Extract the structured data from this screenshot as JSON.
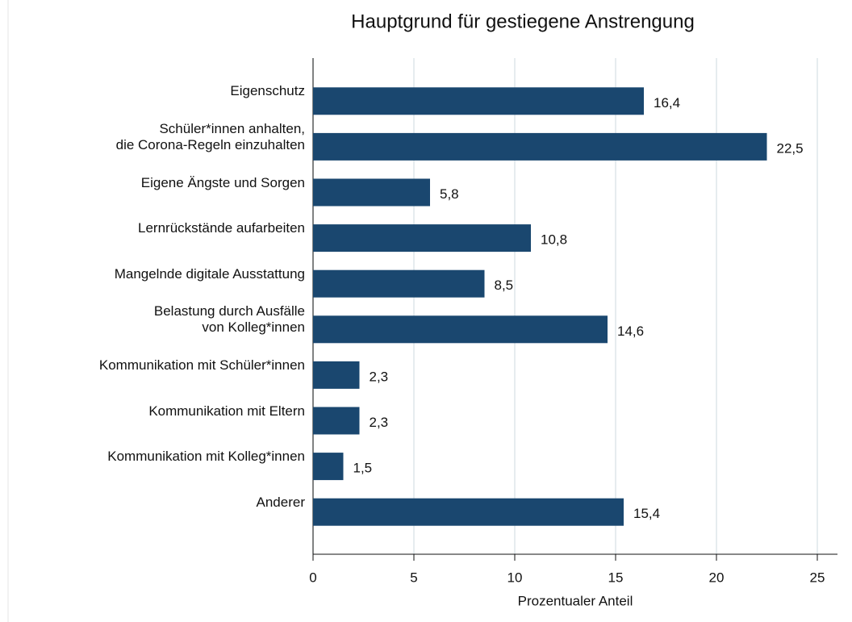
{
  "chart_data": {
    "type": "bar",
    "orientation": "horizontal",
    "title": "Hauptgrund für gestiegene Anstrengung",
    "x_label": "Prozentualer Anteil",
    "categories": [
      "Eigenschutz",
      "Schüler*innen anhalten,\ndie Corona-Regeln einzuhalten",
      "Eigene Ängste und Sorgen",
      "Lernrückstände aufarbeiten",
      "Mangelnde digitale Ausstattung",
      "Belastung durch Ausfälle\nvon Kolleg*innen",
      "Kommunikation mit Schüler*innen",
      "Kommunikation mit Eltern",
      "Kommunikation mit Kolleg*innen",
      "Anderer"
    ],
    "values": [
      16.4,
      22.5,
      5.8,
      10.8,
      8.5,
      14.6,
      2.3,
      2.3,
      1.5,
      15.4
    ],
    "value_labels": [
      "16,4",
      "22,5",
      "5,8",
      "10,8",
      "8,5",
      "14,6",
      "2,3",
      "2,3",
      "1,5",
      "15,4"
    ],
    "color": "#1a476f",
    "xlim": [
      0,
      26
    ],
    "xticks": [
      0,
      5,
      10,
      15,
      20,
      25
    ],
    "grid": true
  }
}
